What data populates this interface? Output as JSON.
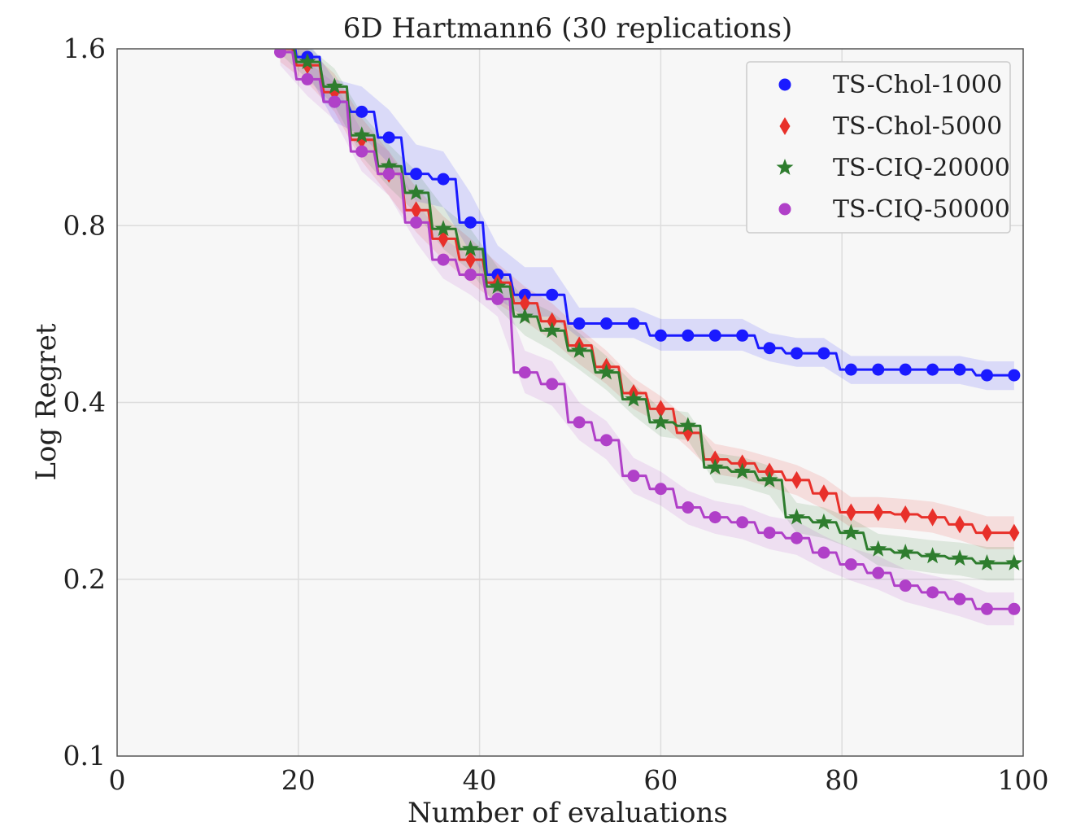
{
  "chart_data": {
    "type": "line",
    "title": "6D Hartmann6 (30 replications)",
    "xlabel": "Number of evaluations",
    "ylabel": "Log Regret",
    "xlim": [
      0,
      100
    ],
    "ylim": [
      0.1,
      1.6
    ],
    "yscale": "log",
    "xticks": [
      0,
      20,
      40,
      60,
      80,
      100
    ],
    "yticks": [
      0.1,
      0.2,
      0.4,
      0.8,
      1.6
    ],
    "xtick_labels": [
      "0",
      "20",
      "40",
      "60",
      "80",
      "100"
    ],
    "ytick_labels": [
      "0.1",
      "0.2",
      "0.4",
      "0.8",
      "1.6"
    ],
    "grid": true,
    "legend_position": "top-right",
    "x": [
      18,
      21,
      24,
      27,
      30,
      33,
      36,
      39,
      42,
      45,
      48,
      51,
      54,
      57,
      60,
      63,
      66,
      69,
      72,
      75,
      78,
      81,
      84,
      87,
      90,
      93,
      96,
      99
    ],
    "series": [
      {
        "name": "TS-Chol-1000",
        "color": "#1a1aff",
        "marker": "circle",
        "values": [
          1.72,
          1.55,
          1.3,
          1.25,
          1.13,
          0.98,
          0.96,
          0.81,
          0.66,
          0.61,
          0.61,
          0.545,
          0.545,
          0.545,
          0.52,
          0.52,
          0.52,
          0.52,
          0.495,
          0.485,
          0.485,
          0.455,
          0.455,
          0.455,
          0.455,
          0.455,
          0.445,
          0.445
        ],
        "upper": [
          1.8,
          1.65,
          1.42,
          1.38,
          1.26,
          1.1,
          1.07,
          0.91,
          0.74,
          0.68,
          0.68,
          0.58,
          0.58,
          0.58,
          0.555,
          0.555,
          0.555,
          0.555,
          0.525,
          0.515,
          0.515,
          0.48,
          0.48,
          0.48,
          0.48,
          0.48,
          0.47,
          0.47
        ],
        "lower": [
          1.64,
          1.46,
          1.2,
          1.14,
          1.02,
          0.88,
          0.86,
          0.72,
          0.6,
          0.56,
          0.56,
          0.515,
          0.515,
          0.515,
          0.49,
          0.49,
          0.49,
          0.49,
          0.47,
          0.46,
          0.46,
          0.43,
          0.43,
          0.43,
          0.43,
          0.43,
          0.42,
          0.42
        ]
      },
      {
        "name": "TS-Chol-5000",
        "color": "#e8302a",
        "marker": "diamond",
        "values": [
          1.6,
          1.5,
          1.35,
          1.12,
          0.98,
          0.85,
          0.76,
          0.7,
          0.64,
          0.59,
          0.55,
          0.5,
          0.46,
          0.415,
          0.39,
          0.355,
          0.32,
          0.315,
          0.305,
          0.295,
          0.28,
          0.26,
          0.26,
          0.258,
          0.255,
          0.248,
          0.24,
          0.24
        ],
        "upper": [
          1.68,
          1.6,
          1.45,
          1.22,
          1.07,
          0.93,
          0.83,
          0.76,
          0.69,
          0.63,
          0.59,
          0.535,
          0.49,
          0.44,
          0.41,
          0.375,
          0.34,
          0.333,
          0.323,
          0.313,
          0.298,
          0.276,
          0.276,
          0.274,
          0.271,
          0.264,
          0.256,
          0.256
        ],
        "lower": [
          1.52,
          1.4,
          1.25,
          1.03,
          0.9,
          0.78,
          0.7,
          0.64,
          0.59,
          0.55,
          0.51,
          0.465,
          0.43,
          0.39,
          0.368,
          0.335,
          0.302,
          0.297,
          0.287,
          0.278,
          0.263,
          0.245,
          0.245,
          0.243,
          0.24,
          0.233,
          0.225,
          0.225
        ]
      },
      {
        "name": "TS-CIQ-20000",
        "color": "#2e7d2e",
        "marker": "star",
        "values": [
          1.65,
          1.52,
          1.38,
          1.14,
          1.01,
          0.91,
          0.79,
          0.73,
          0.63,
          0.56,
          0.53,
          0.49,
          0.45,
          0.405,
          0.37,
          0.365,
          0.31,
          0.305,
          0.295,
          0.255,
          0.25,
          0.24,
          0.225,
          0.222,
          0.219,
          0.217,
          0.213,
          0.213
        ],
        "upper": [
          1.73,
          1.62,
          1.48,
          1.24,
          1.1,
          0.99,
          0.86,
          0.79,
          0.68,
          0.6,
          0.57,
          0.525,
          0.48,
          0.43,
          0.39,
          0.385,
          0.328,
          0.323,
          0.312,
          0.27,
          0.265,
          0.254,
          0.239,
          0.236,
          0.233,
          0.231,
          0.227,
          0.227
        ],
        "lower": [
          1.57,
          1.42,
          1.28,
          1.05,
          0.93,
          0.84,
          0.73,
          0.67,
          0.58,
          0.52,
          0.49,
          0.455,
          0.42,
          0.38,
          0.35,
          0.345,
          0.292,
          0.287,
          0.278,
          0.24,
          0.235,
          0.226,
          0.211,
          0.208,
          0.205,
          0.203,
          0.199,
          0.199
        ]
      },
      {
        "name": "TS-CIQ-50000",
        "color": "#b040c8",
        "marker": "circle",
        "values": [
          1.58,
          1.42,
          1.3,
          1.07,
          0.98,
          0.81,
          0.7,
          0.66,
          0.6,
          0.45,
          0.43,
          0.37,
          0.345,
          0.3,
          0.285,
          0.265,
          0.255,
          0.25,
          0.24,
          0.235,
          0.222,
          0.212,
          0.205,
          0.195,
          0.19,
          0.185,
          0.178,
          0.178
        ],
        "upper": [
          1.66,
          1.52,
          1.4,
          1.16,
          1.07,
          0.88,
          0.76,
          0.71,
          0.65,
          0.49,
          0.47,
          0.4,
          0.372,
          0.322,
          0.305,
          0.283,
          0.272,
          0.267,
          0.256,
          0.251,
          0.237,
          0.226,
          0.219,
          0.208,
          0.203,
          0.198,
          0.19,
          0.19
        ],
        "lower": [
          1.5,
          1.33,
          1.21,
          0.99,
          0.9,
          0.75,
          0.65,
          0.61,
          0.56,
          0.415,
          0.395,
          0.345,
          0.32,
          0.28,
          0.267,
          0.248,
          0.239,
          0.234,
          0.225,
          0.22,
          0.208,
          0.199,
          0.192,
          0.183,
          0.178,
          0.173,
          0.167,
          0.167
        ]
      }
    ]
  }
}
